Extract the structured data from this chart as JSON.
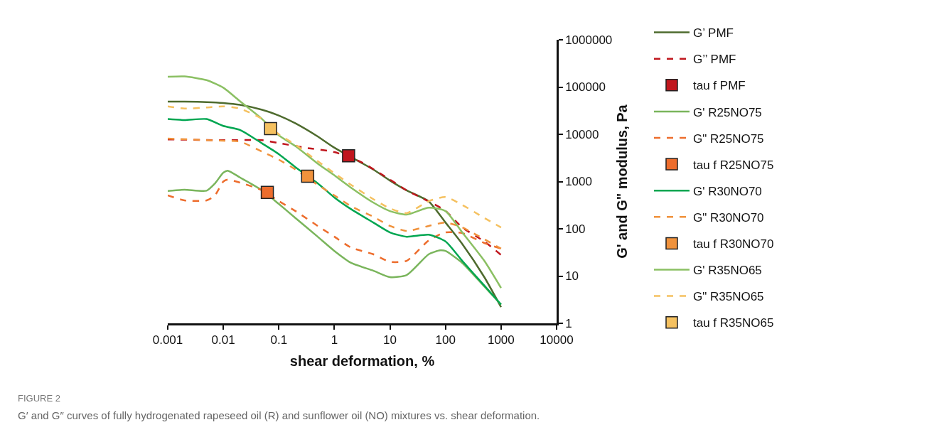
{
  "chart_data": {
    "type": "line",
    "xlabel": "shear deformation, %",
    "ylabel": "G' and G\" modulus, Pa",
    "log": "xy",
    "xlim": [
      0.001,
      10000
    ],
    "ylim": [
      1,
      1000000
    ],
    "xticks": [
      0.001,
      0.01,
      0.1,
      1,
      10,
      100,
      1000,
      10000
    ],
    "yticks": [
      1,
      10,
      100,
      1000,
      10000,
      100000,
      1000000
    ],
    "grid": false,
    "legend": "right",
    "annotations": [
      "FIGURE 2",
      "G′ and G″ curves of fully hydrogenated rapeseed oil (R) and sunflower oil (NO) mixtures vs. shear deformation."
    ],
    "series": [
      {
        "name": "G’ PMF",
        "color": "#4e6b2e",
        "line_style": "solid",
        "x": [
          0.001,
          0.002,
          0.005,
          0.01,
          0.02,
          0.05,
          0.1,
          0.2,
          0.5,
          1,
          5,
          10,
          20,
          50,
          100,
          200,
          500,
          1000
        ],
        "values": [
          49000,
          49000,
          48000,
          46000,
          42000,
          33000,
          25000,
          17000,
          9000,
          5200,
          1800,
          1050,
          650,
          380,
          136,
          48,
          9.5,
          2.2
        ]
      },
      {
        "name": "G’’ PMF",
        "color": "#c0161d",
        "line_style": "dashed",
        "x": [
          0.001,
          0.01,
          0.05,
          0.1,
          0.3,
          1,
          3,
          10,
          20,
          50,
          100,
          200,
          500,
          1000
        ],
        "values": [
          7800,
          7500,
          7500,
          6500,
          5200,
          4200,
          2600,
          1100,
          650,
          380,
          240,
          107,
          54,
          28
        ]
      },
      {
        "name": "tau f PMF",
        "type": "scatter",
        "marker": "square",
        "color": "#c0161d",
        "x": [
          1.8
        ],
        "values": [
          3500
        ]
      },
      {
        "name": "G' R25NO75",
        "color": "#7ab55c",
        "line_style": "solid",
        "x": [
          0.001,
          0.002,
          0.005,
          0.007,
          0.01,
          0.012,
          0.02,
          0.05,
          0.1,
          0.2,
          0.5,
          1,
          2,
          5,
          10,
          20,
          50,
          80,
          100,
          200,
          500,
          1000
        ],
        "values": [
          630,
          670,
          640,
          900,
          1540,
          1700,
          1220,
          650,
          335,
          168,
          68,
          34,
          19,
          13,
          9.5,
          10.5,
          29,
          35,
          34,
          19,
          6,
          2.5
        ]
      },
      {
        "name": "G\" R25NO75",
        "color": "#ed6d2d",
        "line_style": "dashed",
        "x": [
          0.001,
          0.002,
          0.005,
          0.007,
          0.01,
          0.012,
          0.02,
          0.05,
          0.1,
          0.2,
          0.5,
          1,
          2,
          5,
          10,
          20,
          50,
          100,
          200,
          500,
          1000
        ],
        "values": [
          510,
          400,
          400,
          500,
          1000,
          1100,
          950,
          650,
          385,
          237,
          115,
          68,
          40,
          29,
          20,
          21,
          57,
          84,
          81,
          50,
          38
        ]
      },
      {
        "name": "tau f R25NO75",
        "type": "scatter",
        "marker": "square",
        "color": "#ed6d2d",
        "x": [
          0.062
        ],
        "values": [
          590
        ]
      },
      {
        "name": "G' R30NO70",
        "color": "#00a651",
        "line_style": "solid",
        "x": [
          0.001,
          0.002,
          0.005,
          0.01,
          0.02,
          0.05,
          0.1,
          0.2,
          0.5,
          1,
          2,
          5,
          10,
          20,
          50,
          100,
          200,
          500,
          1000
        ],
        "values": [
          21000,
          20000,
          21000,
          15000,
          12400,
          6400,
          3800,
          2000,
          920,
          460,
          260,
          136,
          84,
          68,
          75,
          54,
          21,
          6.3,
          2.5
        ]
      },
      {
        "name": "G\" R30NO70",
        "color": "#f0923c",
        "line_style": "dashed",
        "x": [
          0.001,
          0.01,
          0.02,
          0.05,
          0.1,
          0.2,
          0.5,
          1,
          2,
          5,
          10,
          20,
          50,
          100,
          200,
          500,
          1000
        ],
        "values": [
          8100,
          7300,
          7000,
          4300,
          2900,
          1800,
          850,
          510,
          300,
          180,
          115,
          90,
          115,
          136,
          107,
          60,
          38
        ]
      },
      {
        "name": "tau f R30NO70",
        "type": "scatter",
        "marker": "square",
        "color": "#f0923c",
        "x": [
          0.33
        ],
        "values": [
          1300
        ]
      },
      {
        "name": "G' R35NO65",
        "color": "#8bc063",
        "line_style": "solid",
        "x": [
          0.001,
          0.002,
          0.005,
          0.01,
          0.02,
          0.05,
          0.1,
          0.2,
          0.5,
          1,
          2,
          5,
          10,
          20,
          50,
          100,
          200,
          500,
          1000
        ],
        "values": [
          165000,
          168000,
          140000,
          97000,
          50000,
          21000,
          9500,
          5600,
          2400,
          1350,
          740,
          360,
          237,
          200,
          280,
          237,
          84,
          21,
          5.6
        ]
      },
      {
        "name": "G\" R35NO65",
        "color": "#f5c160",
        "line_style": "dashed",
        "x": [
          0.001,
          0.002,
          0.005,
          0.01,
          0.02,
          0.05,
          0.1,
          0.2,
          0.5,
          1,
          2,
          5,
          10,
          20,
          50,
          100,
          200,
          500,
          1000
        ],
        "values": [
          39000,
          35000,
          37000,
          39000,
          35000,
          21000,
          10000,
          6000,
          2700,
          1500,
          850,
          425,
          270,
          215,
          385,
          470,
          320,
          170,
          107
        ]
      },
      {
        "name": "tau f R35NO65",
        "type": "scatter",
        "marker": "square",
        "color": "#f5c160",
        "x": [
          0.071
        ],
        "values": [
          13200
        ]
      }
    ]
  }
}
